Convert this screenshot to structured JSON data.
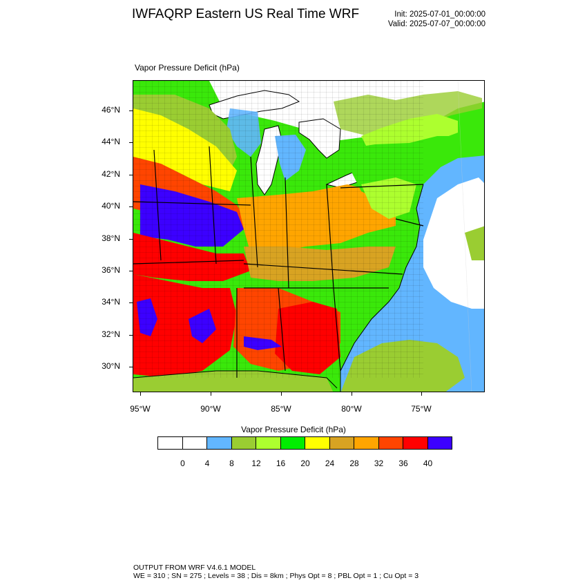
{
  "header": {
    "title": "IWFAQRP Eastern US Real Time WRF",
    "init": "Init: 2025-07-01_00:00:00",
    "valid": "Valid: 2025-07-07_00:00:00"
  },
  "map": {
    "label": "Vapor Pressure Deficit   (hPa)",
    "lat_ticks": [
      "46°N",
      "44°N",
      "42°N",
      "40°N",
      "38°N",
      "36°N",
      "34°N",
      "32°N",
      "30°N"
    ],
    "lon_ticks": [
      "95°W",
      "90°W",
      "85°W",
      "80°W",
      "75°W"
    ]
  },
  "colorbar": {
    "title": "Vapor Pressure Deficit  (hPa)",
    "colors": [
      "#ffffff",
      "#ffffff",
      "#62b6ff",
      "#9acd32",
      "#adff2f",
      "#00ee00",
      "#ffff00",
      "#d8a322",
      "#ffa500",
      "#ff4500",
      "#ff0000",
      "#3c00ff"
    ],
    "labels": [
      "0",
      "4",
      "8",
      "12",
      "16",
      "20",
      "24",
      "28",
      "32",
      "36",
      "40"
    ]
  },
  "footer": {
    "line1": "OUTPUT FROM WRF V4.6.1 MODEL",
    "line2": "WE = 310 ; SN = 275 ; Levels = 38 ; Dis = 8km ; Phys Opt = 8 ; PBL Opt = 1 ; Cu Opt = 3"
  }
}
